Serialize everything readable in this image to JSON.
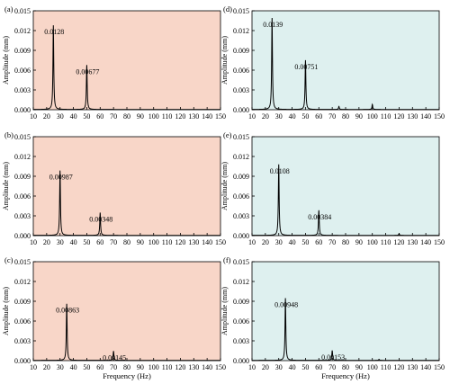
{
  "colors": {
    "left_panel_bg": "#f8d6c8",
    "right_panel_bg": "#def0ef",
    "line": "#000000"
  },
  "chart_data": [
    {
      "type": "line",
      "panel_label": "(a)",
      "xlabel": "",
      "ylabel": "Amplitude (mm)",
      "xlim": [
        10,
        150
      ],
      "ylim": [
        0,
        0.015
      ],
      "xticks": [
        "10",
        "20",
        "30",
        "40",
        "50",
        "60",
        "70",
        "80",
        "90",
        "100",
        "110",
        "120",
        "130",
        "140",
        "150"
      ],
      "yticks": [
        "0.000",
        "0.003",
        "0.006",
        "0.009",
        "0.012",
        "0.015"
      ],
      "peaks": [
        {
          "x": 25,
          "y": 0.0128
        },
        {
          "x": 50,
          "y": 0.00677
        }
      ],
      "annotations": [
        {
          "text": "0.0128",
          "x": 25,
          "y": 0.0128
        },
        {
          "text": "0.00677",
          "x": 50,
          "y": 0.00677
        }
      ]
    },
    {
      "type": "line",
      "panel_label": "(b)",
      "xlabel": "",
      "ylabel": "Amplitude (mm)",
      "xlim": [
        10,
        150
      ],
      "ylim": [
        0,
        0.015
      ],
      "xticks": [
        "10",
        "20",
        "30",
        "40",
        "50",
        "60",
        "70",
        "80",
        "90",
        "100",
        "110",
        "120",
        "130",
        "140",
        "150"
      ],
      "yticks": [
        "0.000",
        "0.003",
        "0.006",
        "0.009",
        "0.012",
        "0.015"
      ],
      "peaks": [
        {
          "x": 30,
          "y": 0.00987
        },
        {
          "x": 60,
          "y": 0.00348
        }
      ],
      "annotations": [
        {
          "text": "0.00987",
          "x": 30,
          "y": 0.00987
        },
        {
          "text": "0.00348",
          "x": 60,
          "y": 0.00348
        }
      ]
    },
    {
      "type": "line",
      "panel_label": "(c)",
      "xlabel": "Frequency (Hz)",
      "ylabel": "Amplitude (mm)",
      "xlim": [
        10,
        150
      ],
      "ylim": [
        0,
        0.015
      ],
      "xticks": [
        "10",
        "20",
        "30",
        "40",
        "50",
        "60",
        "70",
        "80",
        "90",
        "100",
        "110",
        "120",
        "130",
        "140",
        "150"
      ],
      "yticks": [
        "0.000",
        "0.003",
        "0.006",
        "0.009",
        "0.012",
        "0.015"
      ],
      "peaks": [
        {
          "x": 35,
          "y": 0.00863
        },
        {
          "x": 70,
          "y": 0.00145
        }
      ],
      "annotations": [
        {
          "text": "0.00863",
          "x": 35,
          "y": 0.00863
        },
        {
          "text": "0.00145",
          "x": 70,
          "y": 0.00145
        }
      ]
    },
    {
      "type": "line",
      "panel_label": "(d)",
      "xlabel": "",
      "ylabel": "Amplitude (mm)",
      "xlim": [
        10,
        150
      ],
      "ylim": [
        0,
        0.015
      ],
      "xticks": [
        "10",
        "20",
        "30",
        "40",
        "50",
        "60",
        "70",
        "80",
        "90",
        "100",
        "110",
        "120",
        "130",
        "140",
        "150"
      ],
      "yticks": [
        "0.000",
        "0.003",
        "0.006",
        "0.009",
        "0.012",
        "0.015"
      ],
      "peaks": [
        {
          "x": 25,
          "y": 0.0139
        },
        {
          "x": 50,
          "y": 0.00751
        },
        {
          "x": 75,
          "y": 0.0005
        },
        {
          "x": 100,
          "y": 0.0008
        }
      ],
      "annotations": [
        {
          "text": "0.0139",
          "x": 25,
          "y": 0.0139
        },
        {
          "text": "0.00751",
          "x": 50,
          "y": 0.00751
        }
      ]
    },
    {
      "type": "line",
      "panel_label": "(e)",
      "xlabel": "",
      "ylabel": "Amplitude (mm)",
      "xlim": [
        10,
        150
      ],
      "ylim": [
        0,
        0.015
      ],
      "xticks": [
        "10",
        "20",
        "30",
        "40",
        "50",
        "60",
        "70",
        "80",
        "90",
        "100",
        "110",
        "120",
        "130",
        "140",
        "150"
      ],
      "yticks": [
        "0.000",
        "0.003",
        "0.006",
        "0.009",
        "0.012",
        "0.015"
      ],
      "peaks": [
        {
          "x": 30,
          "y": 0.0108
        },
        {
          "x": 60,
          "y": 0.00384
        },
        {
          "x": 120,
          "y": 0.0003
        }
      ],
      "annotations": [
        {
          "text": "0.0108",
          "x": 30,
          "y": 0.0108
        },
        {
          "text": "0.00384",
          "x": 60,
          "y": 0.00384
        }
      ]
    },
    {
      "type": "line",
      "panel_label": "(f)",
      "xlabel": "Frequency (Hz)",
      "ylabel": "Amplitude (mm)",
      "xlim": [
        10,
        150
      ],
      "ylim": [
        0,
        0.015
      ],
      "xticks": [
        "10",
        "20",
        "30",
        "40",
        "50",
        "60",
        "70",
        "80",
        "90",
        "100",
        "110",
        "120",
        "130",
        "140",
        "150"
      ],
      "yticks": [
        "0.000",
        "0.003",
        "0.006",
        "0.009",
        "0.012",
        "0.015"
      ],
      "peaks": [
        {
          "x": 35,
          "y": 0.00948
        },
        {
          "x": 70,
          "y": 0.00153
        },
        {
          "x": 105,
          "y": 0.0002
        }
      ],
      "annotations": [
        {
          "text": "0.00948",
          "x": 35,
          "y": 0.00948
        },
        {
          "text": "0.00153",
          "x": 70,
          "y": 0.00153
        }
      ]
    }
  ]
}
